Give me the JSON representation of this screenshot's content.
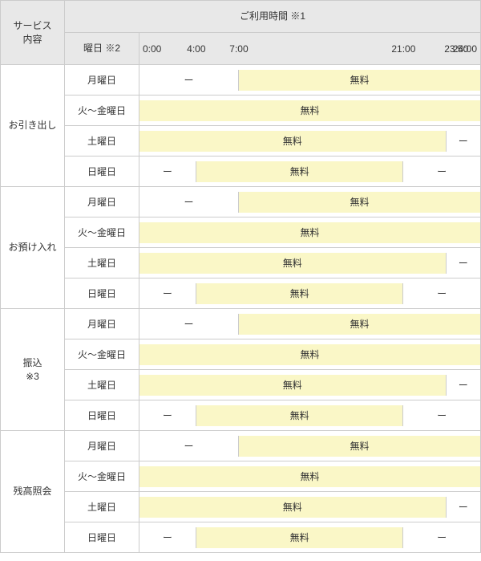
{
  "header": {
    "service_label": "サービス\n内容",
    "time_label": "ご利用時間 ※1",
    "day_label": "曜日 ※2",
    "ticks": [
      {
        "label": "0:00",
        "pos": 0
      },
      {
        "label": "4:00",
        "pos": 16.67
      },
      {
        "label": "7:00",
        "pos": 29.17
      },
      {
        "label": "21:00",
        "pos": 77.5
      },
      {
        "label": "23:50",
        "pos": 93
      },
      {
        "label": "24:00",
        "pos": 100
      }
    ]
  },
  "labels": {
    "free": "無料",
    "dash": "ー"
  },
  "colors": {
    "free_bg": "#faf7c7",
    "header_bg": "#e8e8e8",
    "border": "#cccccc"
  },
  "services": [
    {
      "name": "お引き出し",
      "rows": [
        {
          "day": "月曜日",
          "segs": [
            {
              "type": "dash",
              "start": 0,
              "end": 29.17
            },
            {
              "type": "free",
              "start": 29.17,
              "end": 100
            }
          ]
        },
        {
          "day": "火～金曜日",
          "segs": [
            {
              "type": "free",
              "start": 0,
              "end": 100
            }
          ]
        },
        {
          "day": "土曜日",
          "segs": [
            {
              "type": "free",
              "start": 0,
              "end": 90
            },
            {
              "type": "dash",
              "start": 90,
              "end": 100
            }
          ]
        },
        {
          "day": "日曜日",
          "segs": [
            {
              "type": "dash",
              "start": 0,
              "end": 16.67
            },
            {
              "type": "free",
              "start": 16.67,
              "end": 77.5
            },
            {
              "type": "dash",
              "start": 77.5,
              "end": 100
            }
          ]
        }
      ]
    },
    {
      "name": "お預け入れ",
      "rows": [
        {
          "day": "月曜日",
          "segs": [
            {
              "type": "dash",
              "start": 0,
              "end": 29.17
            },
            {
              "type": "free",
              "start": 29.17,
              "end": 100
            }
          ]
        },
        {
          "day": "火～金曜日",
          "segs": [
            {
              "type": "free",
              "start": 0,
              "end": 100
            }
          ]
        },
        {
          "day": "土曜日",
          "segs": [
            {
              "type": "free",
              "start": 0,
              "end": 90
            },
            {
              "type": "dash",
              "start": 90,
              "end": 100
            }
          ]
        },
        {
          "day": "日曜日",
          "segs": [
            {
              "type": "dash",
              "start": 0,
              "end": 16.67
            },
            {
              "type": "free",
              "start": 16.67,
              "end": 77.5
            },
            {
              "type": "dash",
              "start": 77.5,
              "end": 100
            }
          ]
        }
      ]
    },
    {
      "name": "振込\n※3",
      "rows": [
        {
          "day": "月曜日",
          "segs": [
            {
              "type": "dash",
              "start": 0,
              "end": 29.17
            },
            {
              "type": "free",
              "start": 29.17,
              "end": 100
            }
          ]
        },
        {
          "day": "火～金曜日",
          "segs": [
            {
              "type": "free",
              "start": 0,
              "end": 100
            }
          ]
        },
        {
          "day": "土曜日",
          "segs": [
            {
              "type": "free",
              "start": 0,
              "end": 90
            },
            {
              "type": "dash",
              "start": 90,
              "end": 100
            }
          ]
        },
        {
          "day": "日曜日",
          "segs": [
            {
              "type": "dash",
              "start": 0,
              "end": 16.67
            },
            {
              "type": "free",
              "start": 16.67,
              "end": 77.5
            },
            {
              "type": "dash",
              "start": 77.5,
              "end": 100
            }
          ]
        }
      ]
    },
    {
      "name": "残高照会",
      "rows": [
        {
          "day": "月曜日",
          "segs": [
            {
              "type": "dash",
              "start": 0,
              "end": 29.17
            },
            {
              "type": "free",
              "start": 29.17,
              "end": 100
            }
          ]
        },
        {
          "day": "火～金曜日",
          "segs": [
            {
              "type": "free",
              "start": 0,
              "end": 100
            }
          ]
        },
        {
          "day": "土曜日",
          "segs": [
            {
              "type": "free",
              "start": 0,
              "end": 90
            },
            {
              "type": "dash",
              "start": 90,
              "end": 100
            }
          ]
        },
        {
          "day": "日曜日",
          "segs": [
            {
              "type": "dash",
              "start": 0,
              "end": 16.67
            },
            {
              "type": "free",
              "start": 16.67,
              "end": 77.5
            },
            {
              "type": "dash",
              "start": 77.5,
              "end": 100
            }
          ]
        }
      ]
    }
  ]
}
